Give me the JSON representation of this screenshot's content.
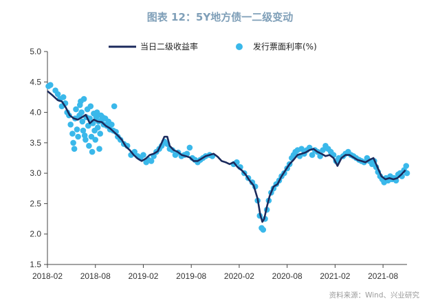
{
  "header": {
    "title": "图表 12：5Y地方债一二级变动"
  },
  "footer": {
    "source": "资料来源：Wind、兴业研究"
  },
  "chart_data": {
    "type": "line",
    "ylim": [
      1.5,
      5.0
    ],
    "yticks": [
      "5.0",
      "4.5",
      "4.0",
      "3.5",
      "3.0",
      "2.5",
      "2.0",
      "1.5"
    ],
    "xlim": [
      "2018-02",
      "2021-11"
    ],
    "xticks": [
      "2018-02",
      "2018-08",
      "2019-02",
      "2019-08",
      "2020-02",
      "2020-08",
      "2021-02",
      "2021-08"
    ],
    "legend_position": "top",
    "series": [
      {
        "name": "当日二级收益率",
        "kind": "line",
        "color": "#1b2a5c",
        "points": [
          [
            "2018-02-01",
            4.35
          ],
          [
            "2018-02-20",
            4.28
          ],
          [
            "2018-03-10",
            4.2
          ],
          [
            "2018-03-25",
            4.18
          ],
          [
            "2018-04-10",
            4.08
          ],
          [
            "2018-04-25",
            3.95
          ],
          [
            "2018-05-10",
            3.9
          ],
          [
            "2018-05-25",
            3.88
          ],
          [
            "2018-06-10",
            3.92
          ],
          [
            "2018-06-25",
            3.96
          ],
          [
            "2018-07-10",
            3.82
          ],
          [
            "2018-07-25",
            3.88
          ],
          [
            "2018-08-10",
            3.85
          ],
          [
            "2018-08-25",
            3.84
          ],
          [
            "2018-09-10",
            3.78
          ],
          [
            "2018-09-25",
            3.74
          ],
          [
            "2018-10-10",
            3.68
          ],
          [
            "2018-10-25",
            3.62
          ],
          [
            "2018-11-10",
            3.55
          ],
          [
            "2018-11-25",
            3.44
          ],
          [
            "2018-12-10",
            3.38
          ],
          [
            "2018-12-25",
            3.3
          ],
          [
            "2019-01-10",
            3.24
          ],
          [
            "2019-01-25",
            3.2
          ],
          [
            "2019-02-10",
            3.24
          ],
          [
            "2019-02-25",
            3.3
          ],
          [
            "2019-03-10",
            3.32
          ],
          [
            "2019-03-25",
            3.36
          ],
          [
            "2019-04-10",
            3.5
          ],
          [
            "2019-04-20",
            3.6
          ],
          [
            "2019-05-01",
            3.6
          ],
          [
            "2019-05-10",
            3.45
          ],
          [
            "2019-05-25",
            3.38
          ],
          [
            "2019-06-10",
            3.35
          ],
          [
            "2019-06-25",
            3.3
          ],
          [
            "2019-07-10",
            3.28
          ],
          [
            "2019-07-25",
            3.26
          ],
          [
            "2019-08-10",
            3.2
          ],
          [
            "2019-08-25",
            3.2
          ],
          [
            "2019-09-10",
            3.24
          ],
          [
            "2019-09-25",
            3.28
          ],
          [
            "2019-10-10",
            3.3
          ],
          [
            "2019-10-25",
            3.32
          ],
          [
            "2019-11-10",
            3.27
          ],
          [
            "2019-11-25",
            3.2
          ],
          [
            "2019-12-10",
            3.18
          ],
          [
            "2019-12-25",
            3.15
          ],
          [
            "2020-01-10",
            3.18
          ],
          [
            "2020-01-25",
            3.1
          ],
          [
            "2020-02-10",
            3.05
          ],
          [
            "2020-02-25",
            2.98
          ],
          [
            "2020-03-10",
            2.88
          ],
          [
            "2020-03-25",
            2.8
          ],
          [
            "2020-04-10",
            2.58
          ],
          [
            "2020-04-20",
            2.32
          ],
          [
            "2020-04-28",
            2.2
          ],
          [
            "2020-05-05",
            2.25
          ],
          [
            "2020-05-15",
            2.45
          ],
          [
            "2020-05-25",
            2.62
          ],
          [
            "2020-06-10",
            2.78
          ],
          [
            "2020-06-25",
            2.82
          ],
          [
            "2020-07-10",
            2.95
          ],
          [
            "2020-07-25",
            3.05
          ],
          [
            "2020-08-10",
            3.15
          ],
          [
            "2020-08-25",
            3.22
          ],
          [
            "2020-09-10",
            3.3
          ],
          [
            "2020-09-25",
            3.32
          ],
          [
            "2020-10-10",
            3.34
          ],
          [
            "2020-10-25",
            3.38
          ],
          [
            "2020-11-10",
            3.4
          ],
          [
            "2020-11-25",
            3.35
          ],
          [
            "2020-12-10",
            3.32
          ],
          [
            "2020-12-25",
            3.28
          ],
          [
            "2021-01-10",
            3.3
          ],
          [
            "2021-01-25",
            3.25
          ],
          [
            "2021-02-10",
            3.12
          ],
          [
            "2021-02-25",
            3.25
          ],
          [
            "2021-03-10",
            3.3
          ],
          [
            "2021-03-25",
            3.3
          ],
          [
            "2021-04-10",
            3.26
          ],
          [
            "2021-04-25",
            3.22
          ],
          [
            "2021-05-10",
            3.2
          ],
          [
            "2021-05-25",
            3.18
          ],
          [
            "2021-06-10",
            3.22
          ],
          [
            "2021-06-25",
            3.25
          ],
          [
            "2021-07-10",
            3.1
          ],
          [
            "2021-07-25",
            2.95
          ],
          [
            "2021-08-10",
            2.9
          ],
          [
            "2021-08-25",
            2.92
          ],
          [
            "2021-09-10",
            2.9
          ],
          [
            "2021-09-25",
            2.92
          ],
          [
            "2021-10-10",
            2.98
          ],
          [
            "2021-10-25",
            3.05
          ]
        ]
      },
      {
        "name": "发行票面利率(%)",
        "kind": "scatter",
        "color": "#3ab8ea",
        "points": [
          [
            "2018-02-05",
            4.43
          ],
          [
            "2018-02-12",
            4.45
          ],
          [
            "2018-03-01",
            4.36
          ],
          [
            "2018-03-10",
            4.3
          ],
          [
            "2018-03-18",
            4.22
          ],
          [
            "2018-03-25",
            4.1
          ],
          [
            "2018-04-01",
            4.25
          ],
          [
            "2018-04-08",
            4.15
          ],
          [
            "2018-04-15",
            4.0
          ],
          [
            "2018-04-22",
            3.95
          ],
          [
            "2018-04-28",
            3.8
          ],
          [
            "2018-05-05",
            3.65
          ],
          [
            "2018-05-08",
            3.5
          ],
          [
            "2018-05-12",
            3.4
          ],
          [
            "2018-05-15",
            3.9
          ],
          [
            "2018-05-18",
            4.05
          ],
          [
            "2018-05-22",
            3.72
          ],
          [
            "2018-05-26",
            3.6
          ],
          [
            "2018-06-01",
            3.95
          ],
          [
            "2018-06-03",
            4.12
          ],
          [
            "2018-06-06",
            4.18
          ],
          [
            "2018-06-09",
            4.0
          ],
          [
            "2018-06-12",
            3.85
          ],
          [
            "2018-06-15",
            3.7
          ],
          [
            "2018-06-18",
            4.22
          ],
          [
            "2018-06-21",
            3.62
          ],
          [
            "2018-06-24",
            3.55
          ],
          [
            "2018-06-27",
            3.92
          ],
          [
            "2018-07-01",
            4.05
          ],
          [
            "2018-07-04",
            3.78
          ],
          [
            "2018-07-07",
            3.45
          ],
          [
            "2018-07-10",
            3.9
          ],
          [
            "2018-07-13",
            4.1
          ],
          [
            "2018-07-16",
            3.6
          ],
          [
            "2018-07-19",
            3.35
          ],
          [
            "2018-07-22",
            3.82
          ],
          [
            "2018-07-25",
            3.98
          ],
          [
            "2018-07-28",
            3.7
          ],
          [
            "2018-08-01",
            3.55
          ],
          [
            "2018-08-04",
            3.92
          ],
          [
            "2018-08-07",
            4.0
          ],
          [
            "2018-08-10",
            3.75
          ],
          [
            "2018-08-13",
            3.85
          ],
          [
            "2018-08-16",
            3.4
          ],
          [
            "2018-08-19",
            3.65
          ],
          [
            "2018-08-22",
            3.95
          ],
          [
            "2018-08-25",
            3.88
          ],
          [
            "2018-08-28",
            3.92
          ],
          [
            "2018-09-02",
            3.8
          ],
          [
            "2018-09-08",
            3.9
          ],
          [
            "2018-09-14",
            3.78
          ],
          [
            "2018-09-20",
            3.85
          ],
          [
            "2018-09-26",
            3.72
          ],
          [
            "2018-10-02",
            3.8
          ],
          [
            "2018-10-08",
            3.7
          ],
          [
            "2018-10-12",
            4.1
          ],
          [
            "2018-10-18",
            3.68
          ],
          [
            "2018-10-25",
            3.6
          ],
          [
            "2018-11-05",
            3.55
          ],
          [
            "2018-11-18",
            3.48
          ],
          [
            "2018-12-01",
            3.45
          ],
          [
            "2018-12-15",
            3.3
          ],
          [
            "2018-12-28",
            3.35
          ],
          [
            "2019-01-10",
            3.28
          ],
          [
            "2019-01-20",
            3.25
          ],
          [
            "2019-02-01",
            3.3
          ],
          [
            "2019-02-12",
            3.18
          ],
          [
            "2019-02-20",
            3.22
          ],
          [
            "2019-03-01",
            3.2
          ],
          [
            "2019-03-10",
            3.28
          ],
          [
            "2019-03-20",
            3.35
          ],
          [
            "2019-04-01",
            3.4
          ],
          [
            "2019-04-10",
            3.45
          ],
          [
            "2019-04-20",
            3.52
          ],
          [
            "2019-05-01",
            3.48
          ],
          [
            "2019-05-10",
            3.4
          ],
          [
            "2019-05-20",
            3.38
          ],
          [
            "2019-06-01",
            3.3
          ],
          [
            "2019-06-12",
            3.34
          ],
          [
            "2019-06-24",
            3.28
          ],
          [
            "2019-07-05",
            3.3
          ],
          [
            "2019-07-15",
            3.32
          ],
          [
            "2019-07-25",
            3.42
          ],
          [
            "2019-08-05",
            3.25
          ],
          [
            "2019-08-15",
            3.22
          ],
          [
            "2019-08-25",
            3.18
          ],
          [
            "2019-09-05",
            3.22
          ],
          [
            "2019-09-15",
            3.25
          ],
          [
            "2019-09-25",
            3.28
          ],
          [
            "2019-10-10",
            3.3
          ],
          [
            "2019-10-20",
            3.28
          ],
          [
            "2020-01-10",
            3.15
          ],
          [
            "2020-01-22",
            3.18
          ],
          [
            "2020-02-05",
            3.1
          ],
          [
            "2020-02-20",
            3.0
          ],
          [
            "2020-03-05",
            2.92
          ],
          [
            "2020-03-20",
            2.85
          ],
          [
            "2020-04-01",
            2.78
          ],
          [
            "2020-04-10",
            2.55
          ],
          [
            "2020-04-18",
            2.3
          ],
          [
            "2020-04-25",
            2.1
          ],
          [
            "2020-05-01",
            2.07
          ],
          [
            "2020-05-08",
            2.25
          ],
          [
            "2020-05-15",
            2.4
          ],
          [
            "2020-05-22",
            2.55
          ],
          [
            "2020-06-01",
            2.68
          ],
          [
            "2020-06-10",
            2.75
          ],
          [
            "2020-06-20",
            2.82
          ],
          [
            "2020-07-01",
            2.88
          ],
          [
            "2020-07-10",
            2.95
          ],
          [
            "2020-07-20",
            3.0
          ],
          [
            "2020-08-01",
            3.08
          ],
          [
            "2020-08-10",
            3.15
          ],
          [
            "2020-08-18",
            3.25
          ],
          [
            "2020-08-25",
            3.3
          ],
          [
            "2020-09-02",
            3.35
          ],
          [
            "2020-09-10",
            3.38
          ],
          [
            "2020-09-18",
            3.28
          ],
          [
            "2020-09-25",
            3.4
          ],
          [
            "2020-10-05",
            3.32
          ],
          [
            "2020-10-15",
            3.38
          ],
          [
            "2020-10-25",
            3.42
          ],
          [
            "2020-11-05",
            3.3
          ],
          [
            "2020-11-15",
            3.38
          ],
          [
            "2020-11-25",
            3.35
          ],
          [
            "2020-12-05",
            3.28
          ],
          [
            "2020-12-15",
            3.38
          ],
          [
            "2020-12-25",
            3.45
          ],
          [
            "2021-01-05",
            3.4
          ],
          [
            "2021-01-15",
            3.35
          ],
          [
            "2021-01-25",
            3.3
          ],
          [
            "2021-02-05",
            3.2
          ],
          [
            "2021-02-15",
            3.25
          ],
          [
            "2021-03-01",
            3.28
          ],
          [
            "2021-03-10",
            3.32
          ],
          [
            "2021-03-20",
            3.35
          ],
          [
            "2021-04-01",
            3.3
          ],
          [
            "2021-04-10",
            3.28
          ],
          [
            "2021-04-20",
            3.25
          ],
          [
            "2021-05-01",
            3.22
          ],
          [
            "2021-05-10",
            3.2
          ],
          [
            "2021-05-20",
            3.18
          ],
          [
            "2021-06-01",
            3.25
          ],
          [
            "2021-06-10",
            3.2
          ],
          [
            "2021-06-20",
            3.15
          ],
          [
            "2021-06-28",
            3.2
          ],
          [
            "2021-07-05",
            3.1
          ],
          [
            "2021-07-12",
            3.02
          ],
          [
            "2021-07-20",
            2.95
          ],
          [
            "2021-07-28",
            2.9
          ],
          [
            "2021-08-05",
            2.85
          ],
          [
            "2021-08-12",
            2.92
          ],
          [
            "2021-08-20",
            2.88
          ],
          [
            "2021-08-28",
            2.95
          ],
          [
            "2021-09-05",
            2.9
          ],
          [
            "2021-09-12",
            2.92
          ],
          [
            "2021-09-20",
            2.88
          ],
          [
            "2021-09-28",
            2.98
          ],
          [
            "2021-10-05",
            3.0
          ],
          [
            "2021-10-12",
            2.95
          ],
          [
            "2021-10-20",
            3.05
          ],
          [
            "2021-10-28",
            3.12
          ],
          [
            "2021-11-01",
            3.0
          ]
        ]
      }
    ]
  }
}
